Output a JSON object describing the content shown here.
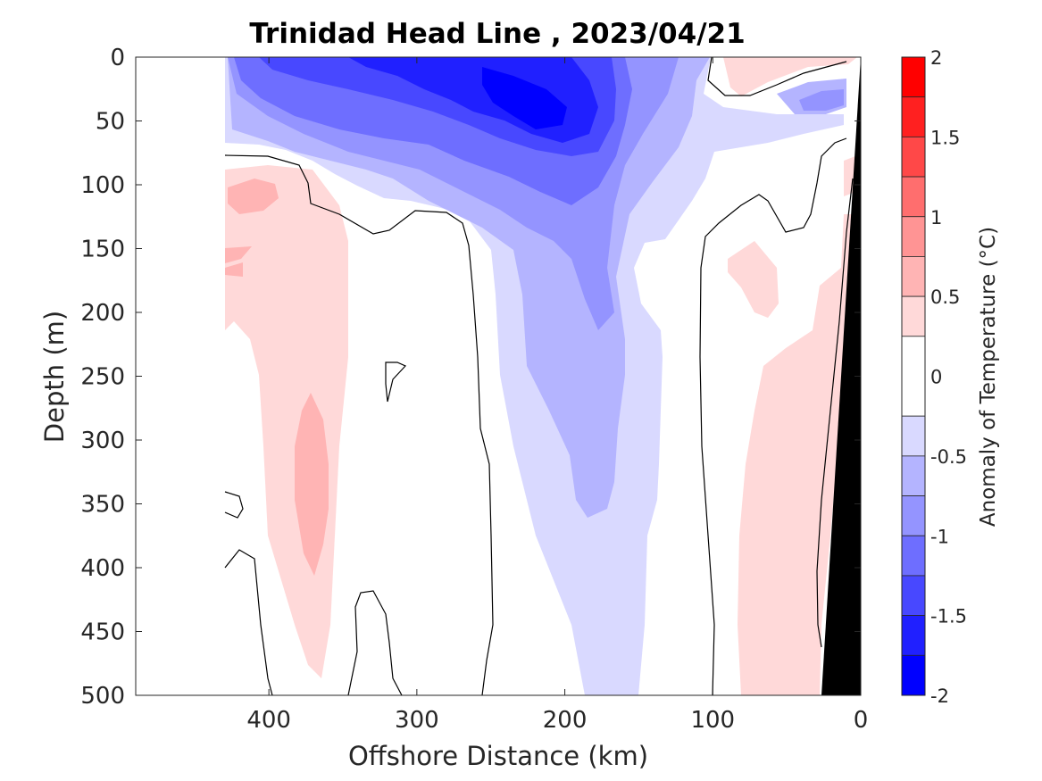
{
  "chart_data": {
    "type": "heatmap",
    "title": "Trinidad Head Line , 2023/04/21",
    "xlabel": "Offshore Distance (km)",
    "ylabel": "Depth (m)",
    "xlim": [
      490,
      0
    ],
    "ylim": [
      0,
      500
    ],
    "x_ticks": [
      400,
      300,
      200,
      100,
      0
    ],
    "y_ticks": [
      0,
      50,
      100,
      150,
      200,
      250,
      300,
      350,
      400,
      450,
      500
    ],
    "colorbar": {
      "label": "Anomaly of Temperature (°C)",
      "range": [
        -2,
        2
      ],
      "level_step": 0.25,
      "ticks": [
        2,
        1.5,
        1,
        0.5,
        0,
        -0.5,
        -1,
        -1.5,
        -2
      ],
      "colors": {
        "1.75_to_2": "#ff0000",
        "1.5_to_1.75": "#ff2020",
        "1.25_to_1.5": "#ff4848",
        "1_to_1.25": "#ff6e6e",
        "0.75_to_1": "#ff9494",
        "0.5_to_0.75": "#ffb4b4",
        "0.25_to_0.5": "#ffd9d9",
        "-0.25_to_0.25": "#ffffff",
        "-0.5_to_-0.25": "#d9d9ff",
        "-0.75_to_-0.5": "#b4b4ff",
        "-1_to_-0.75": "#9494ff",
        "-1.25_to_-1": "#6e6eff",
        "-1.5_to_-1.25": "#4848ff",
        "-1.75_to_-1.5": "#2020ff",
        "-2_to_-1.75": "#0000ff"
      }
    },
    "data_extent_km": [
      432,
      0
    ],
    "features": [
      {
        "anomaly_range": [
          -1.75,
          -1.5
        ],
        "location": "core near 200-250 km, 0-60 m"
      },
      {
        "anomaly_range": [
          -1.5,
          -0.25
        ],
        "location": "cold tongue from surface near 120-430 km, descending near 150-260 km to 500 m"
      },
      {
        "anomaly_range": [
          0.25,
          0.75
        ],
        "location": "warm column near 340-430 km, 80-480 m, core 0.5-0.75 near 370 km at 260-400 m"
      },
      {
        "anomaly_range": [
          0.25,
          0.5
        ],
        "location": "warm column near 20-85 km, 180-500 m"
      },
      {
        "anomaly_range": [
          0.25,
          0.5
        ],
        "location": "warm patch near 20-100 km at surface"
      }
    ],
    "zero_contour": "black line"
  }
}
